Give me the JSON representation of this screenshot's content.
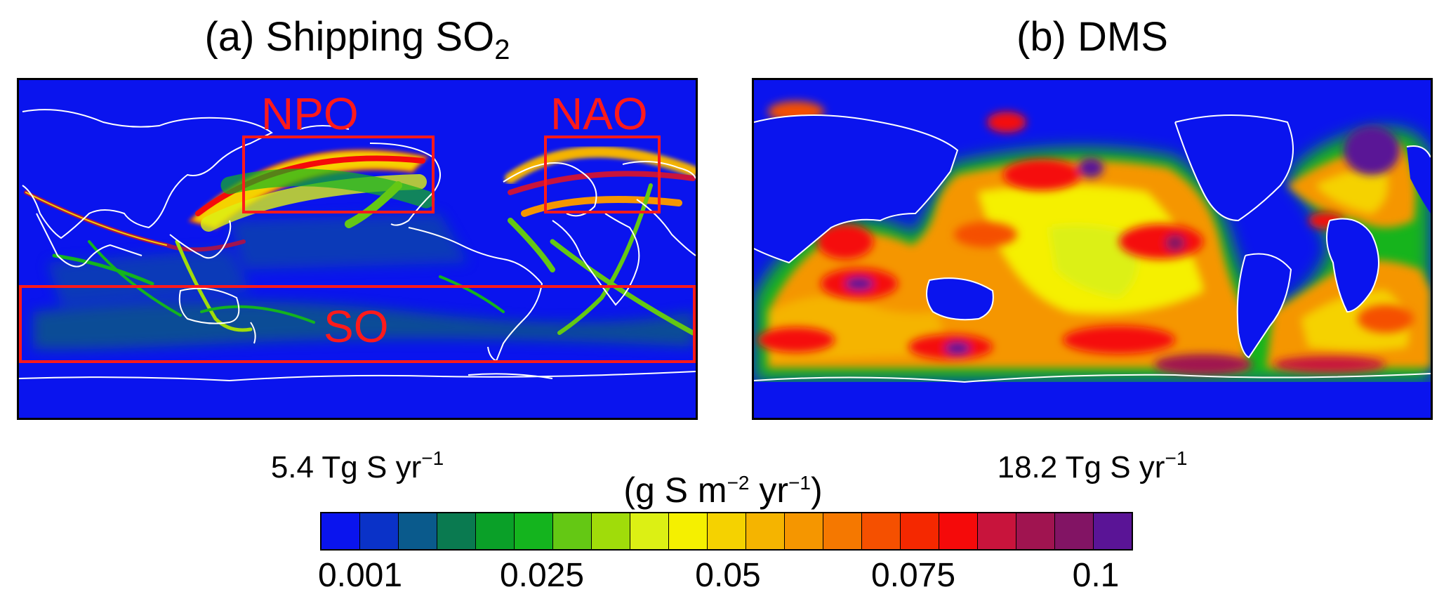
{
  "panels": [
    {
      "id": "a",
      "title": "(a) Shipping SO",
      "title_sub": "2",
      "total_value": "5.4 Tg S yr",
      "total_exp": "−1",
      "regions": [
        {
          "label": "NPO"
        },
        {
          "label": "NAO"
        },
        {
          "label": "SO"
        }
      ]
    },
    {
      "id": "b",
      "title": "(b) DMS",
      "total_value": "18.2 Tg S yr",
      "total_exp": "−1"
    }
  ],
  "colorbar": {
    "unit_text": "(g S m",
    "unit_exp1": "−2",
    "unit_mid": " yr",
    "unit_exp2": "−1",
    "unit_close": ")",
    "ticks": [
      "0.001",
      "0.025",
      "0.05",
      "0.075",
      "0.1"
    ],
    "colors": [
      "#0a14ee",
      "#0a32c8",
      "#0a5a8c",
      "#0a7a50",
      "#0aa028",
      "#14b41e",
      "#64c814",
      "#a0dc0a",
      "#dcf014",
      "#f5f000",
      "#f5d200",
      "#f5b400",
      "#f59600",
      "#f57800",
      "#f55000",
      "#f52800",
      "#f50a0a",
      "#c8143c",
      "#a01450",
      "#821464",
      "#5a1496"
    ]
  },
  "map_colors": {
    "ocean": "#0a14ee",
    "coast": "#ffffff",
    "region_box": "#ff1a1a"
  }
}
